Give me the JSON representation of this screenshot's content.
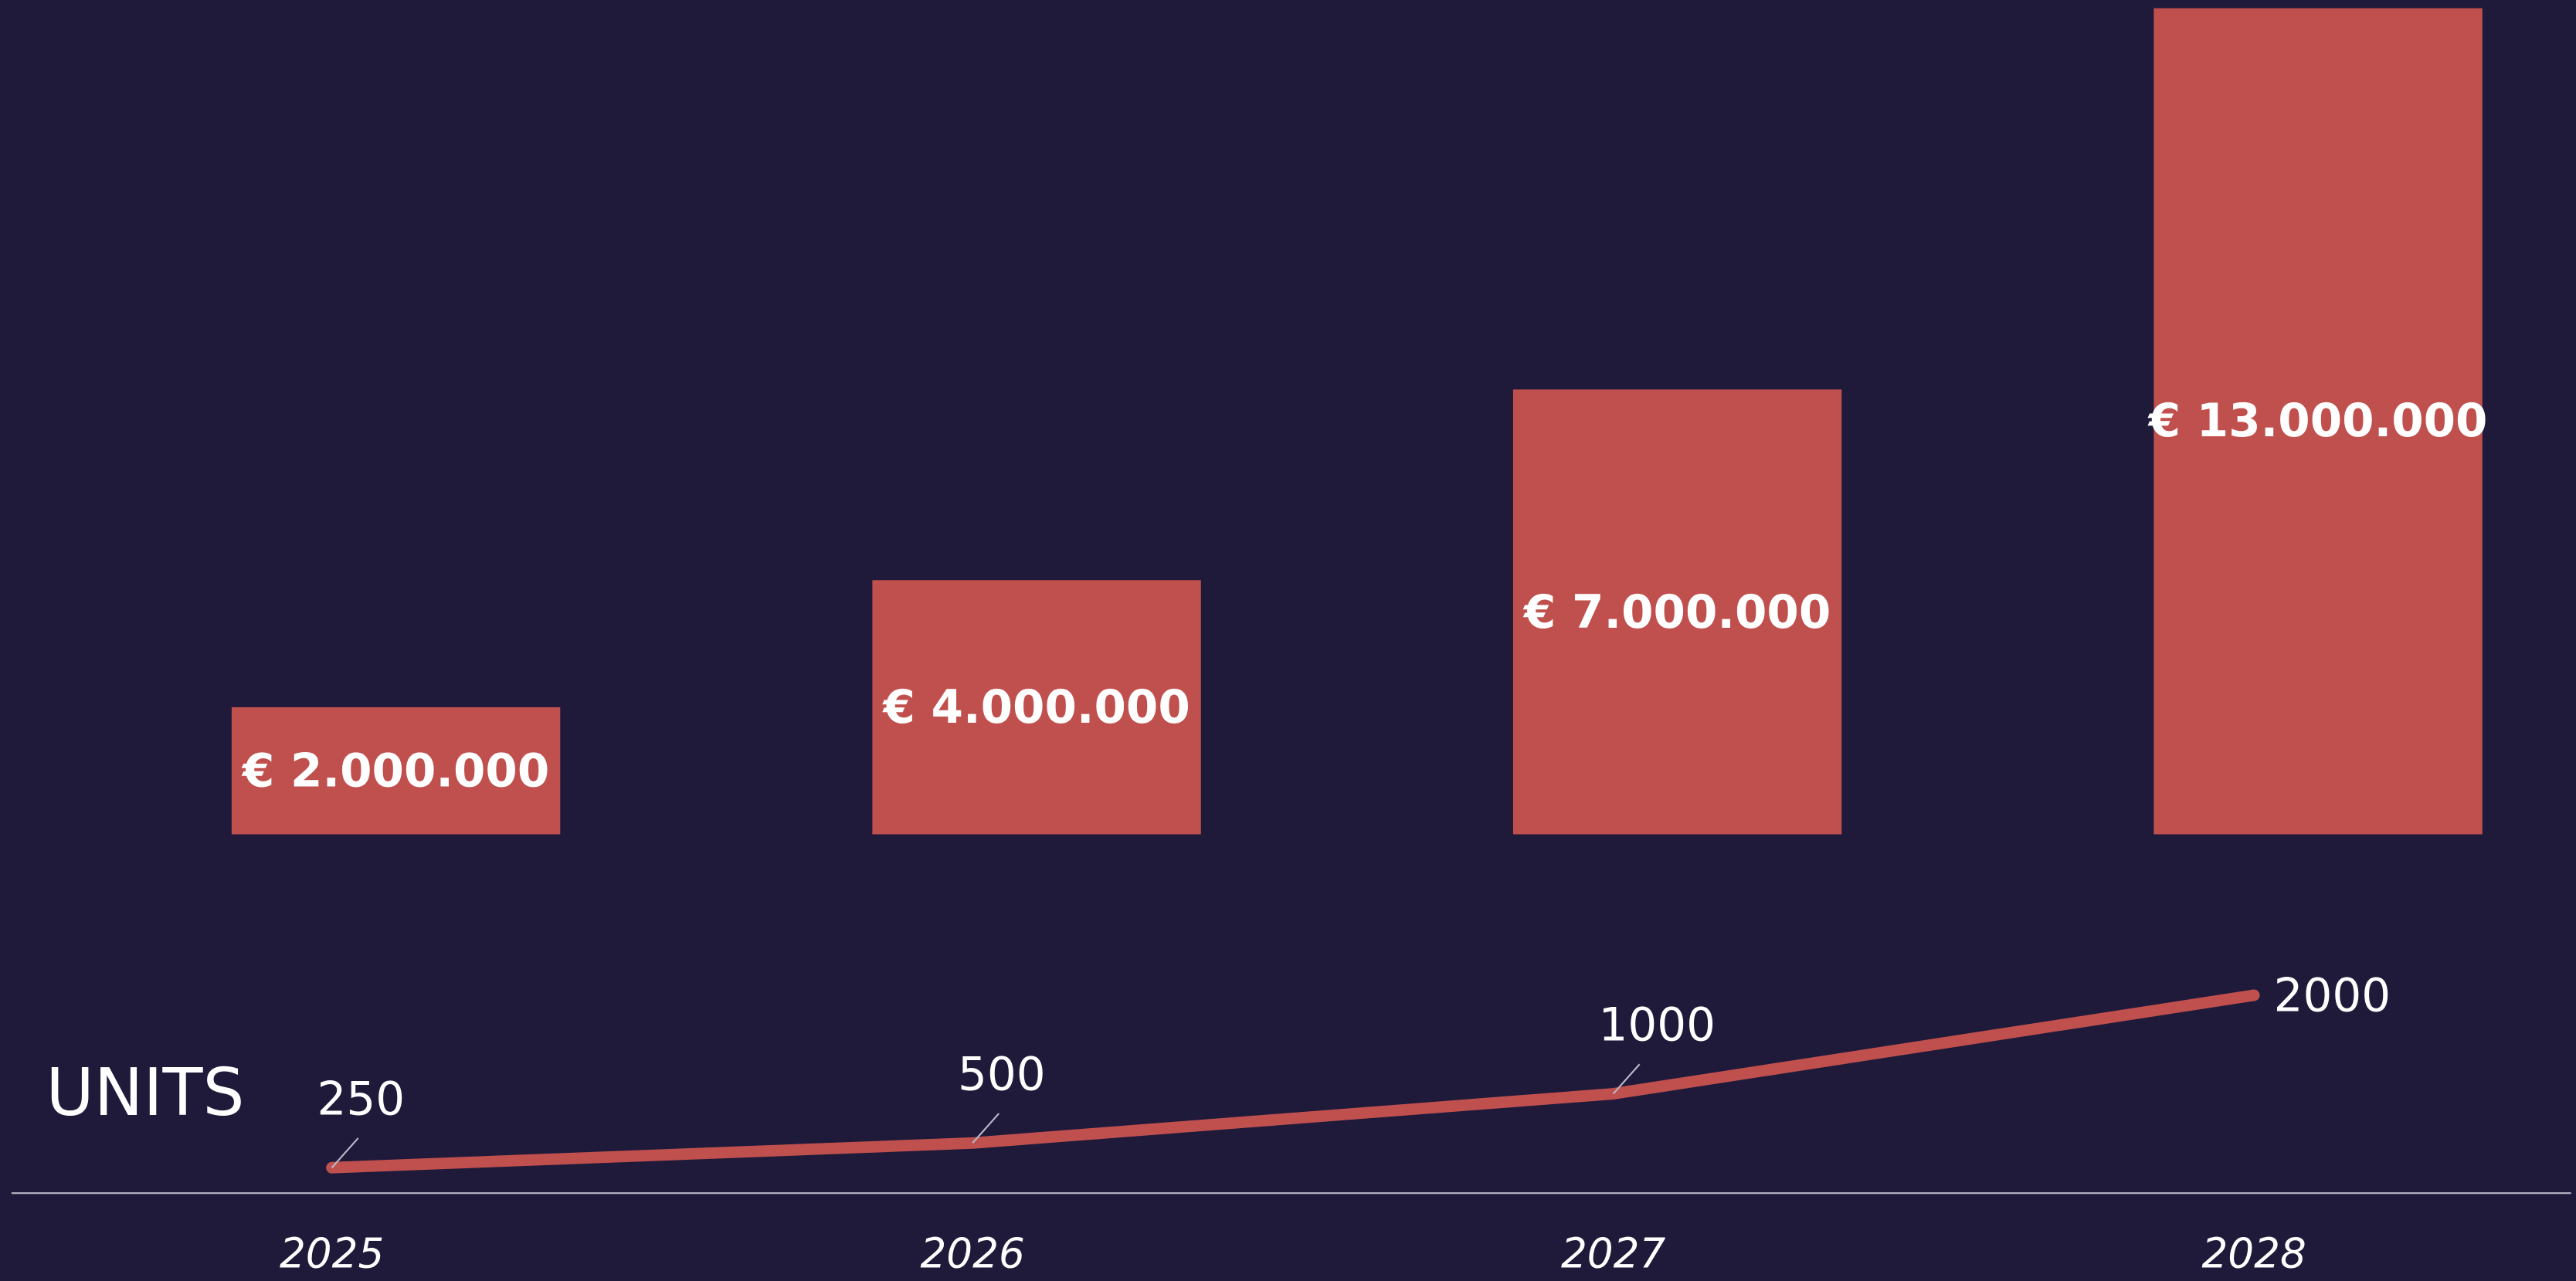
{
  "chart_data": [
    {
      "type": "bar",
      "categories": [
        "2025",
        "2026",
        "2027",
        "2028"
      ],
      "values": [
        2000000,
        4000000,
        7000000,
        13000000
      ],
      "value_labels": [
        "€ 2.000.000",
        "€ 4.000.000",
        "€ 7.000.000",
        "€ 13.000.000"
      ],
      "color": "#c0504d"
    },
    {
      "type": "line",
      "title": "UNITS",
      "values": [
        250,
        500,
        1000,
        2000
      ],
      "color": "#c0504d"
    }
  ]
}
